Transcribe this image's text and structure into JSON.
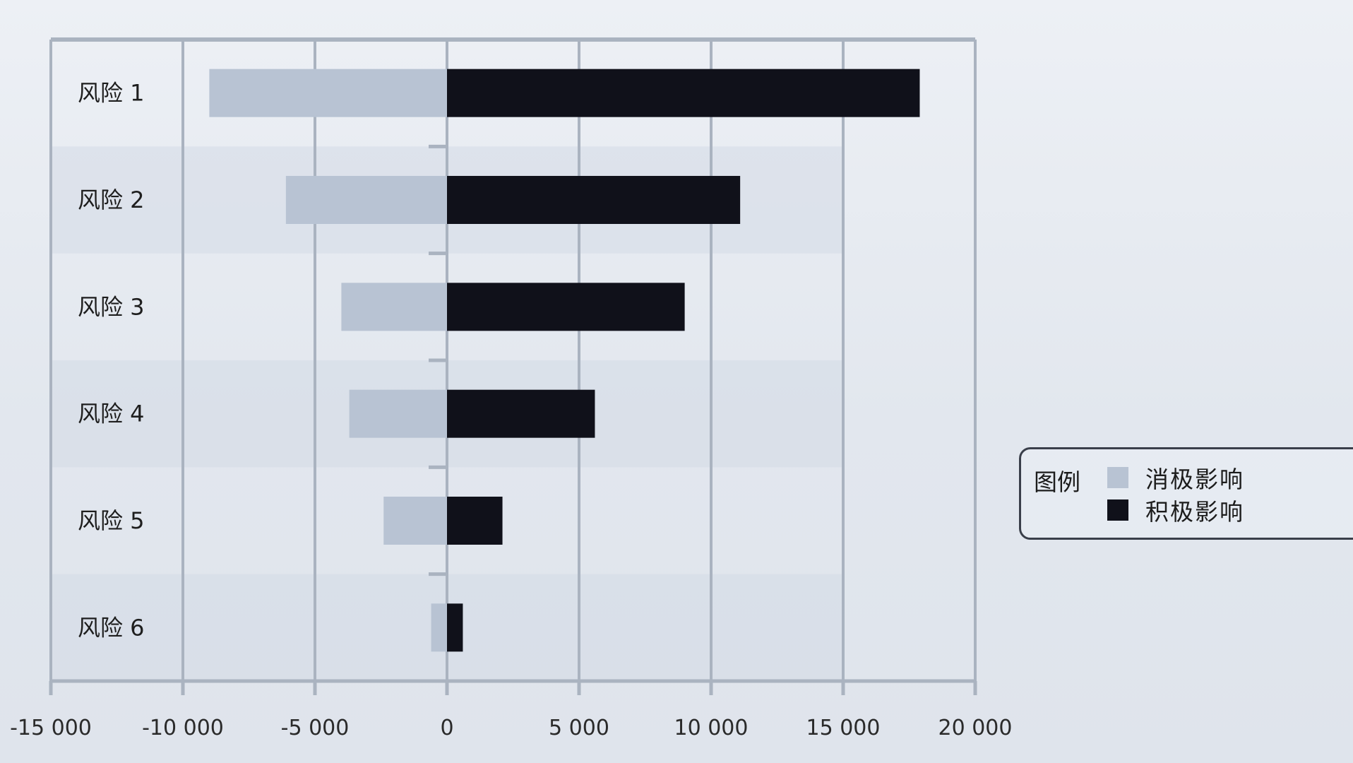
{
  "chart_data": {
    "type": "bar",
    "orientation": "horizontal",
    "stacked": "diverging",
    "categories": [
      "风险 1",
      "风险 2",
      "风险 3",
      "风险 4",
      "风险 5",
      "风险 6"
    ],
    "series": [
      {
        "name": "消极影响",
        "color": "#b8c3d3",
        "values": [
          -9000,
          -6100,
          -4000,
          -3700,
          -2400,
          -600
        ]
      },
      {
        "name": "积极影响",
        "color": "#10111a",
        "values": [
          17900,
          11100,
          9000,
          5600,
          2100,
          600
        ]
      }
    ],
    "xlim": [
      -15000,
      20000
    ],
    "xticks": [
      -15000,
      -10000,
      -5000,
      0,
      5000,
      10000,
      15000,
      20000
    ],
    "xtick_labels": [
      "-15 000",
      "-10 000",
      "-5 000",
      "0",
      "5 000",
      "10 000",
      "15 000",
      "20 000"
    ],
    "grid": true,
    "legend_position": "right"
  },
  "legend": {
    "title": "图例",
    "items": [
      {
        "label": "消极影响",
        "color": "#b8c3d3"
      },
      {
        "label": "积极影响",
        "color": "#10111a"
      }
    ]
  }
}
